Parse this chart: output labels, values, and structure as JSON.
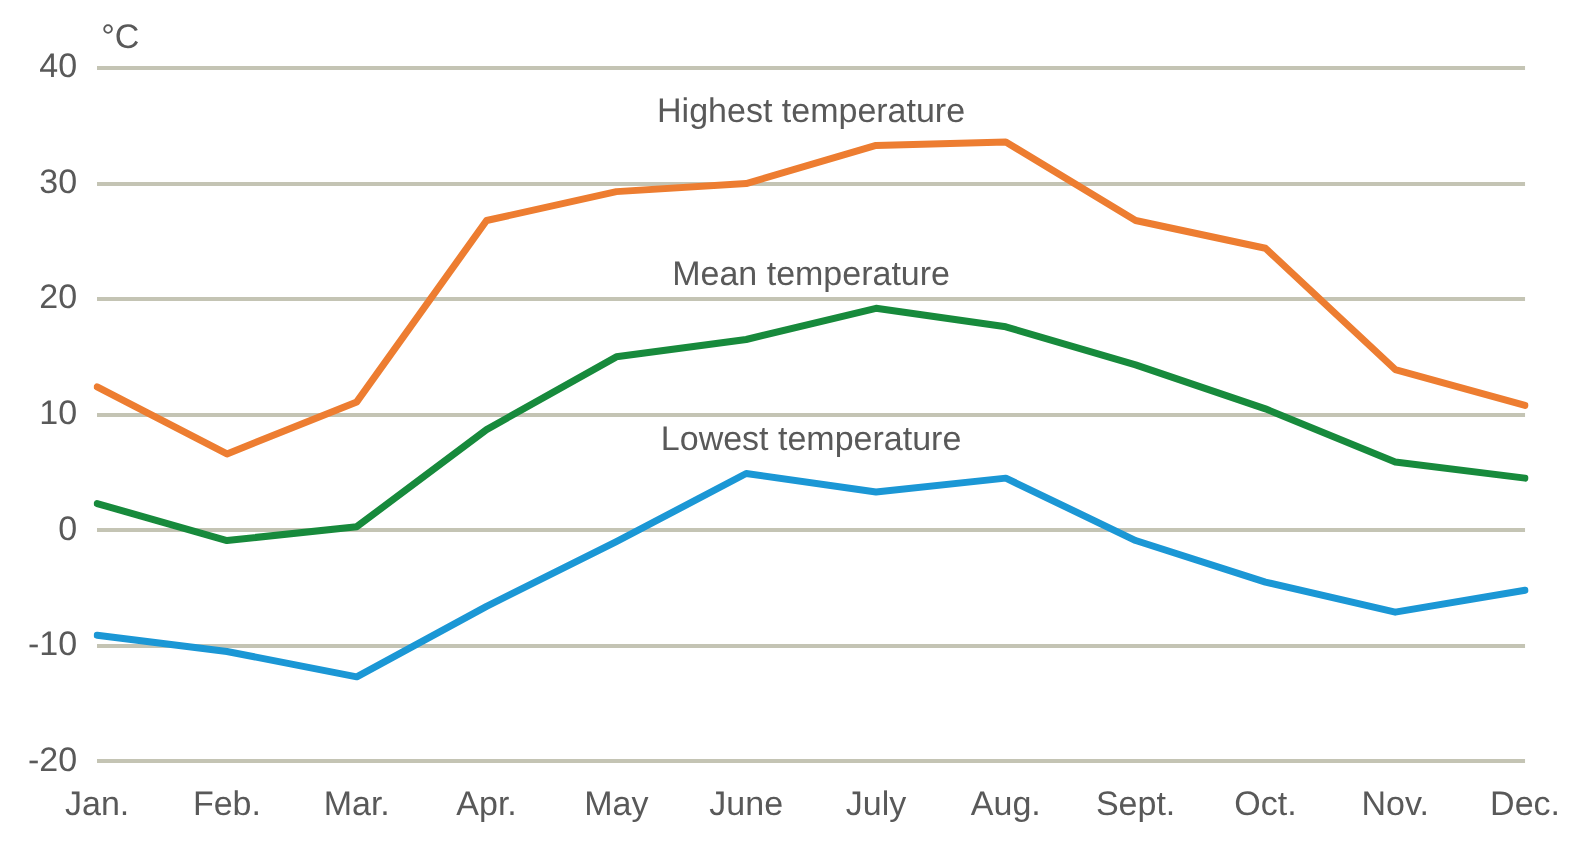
{
  "chart_data": {
    "type": "line",
    "ylabel": "°C",
    "categories": [
      "Jan.",
      "Feb.",
      "Mar.",
      "Apr.",
      "May",
      "June",
      "July",
      "Aug.",
      "Sept.",
      "Oct.",
      "Nov.",
      "Dec."
    ],
    "series": [
      {
        "name": "Highest temperature",
        "color": "#ed7d31",
        "values": [
          12.4,
          6.6,
          11.1,
          26.8,
          29.3,
          30,
          33.3,
          33.6,
          26.8,
          24.4,
          13.9,
          10.8
        ]
      },
      {
        "name": "Mean temperature",
        "color": "#178a3c",
        "values": [
          2.3,
          -0.9,
          0.3,
          8.7,
          15,
          16.5,
          19.2,
          17.6,
          14.3,
          10.5,
          5.9,
          4.5
        ]
      },
      {
        "name": "Lowest temperature",
        "color": "#1b97d5",
        "values": [
          -9.1,
          -10.5,
          -12.7,
          -6.6,
          -1,
          4.9,
          3.3,
          4.5,
          -0.9,
          -4.5,
          -7.1,
          -5.2
        ]
      }
    ],
    "ylim": [
      -20,
      40
    ],
    "yticks": [
      -20,
      -10,
      0,
      10,
      20,
      30,
      40
    ],
    "grid": "y",
    "legend": false,
    "marker": "none",
    "line_style": "solid"
  }
}
